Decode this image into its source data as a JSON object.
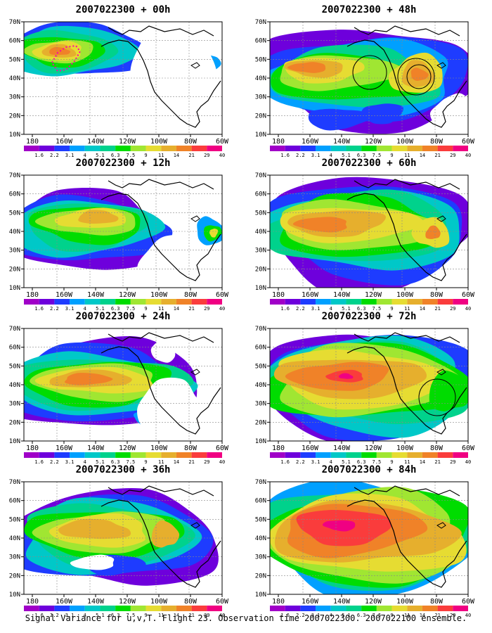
{
  "panels": [
    {
      "title": "2007022300 + 00h"
    },
    {
      "title": "2007022300 + 48h"
    },
    {
      "title": "2007022300 + 12h"
    },
    {
      "title": "2007022300 + 60h"
    },
    {
      "title": "2007022300 + 24h"
    },
    {
      "title": "2007022300 + 72h"
    },
    {
      "title": "2007022300 + 36h"
    },
    {
      "title": "2007022300 + 84h"
    }
  ],
  "lat_ticks": [
    "70N",
    "60N",
    "50N",
    "40N",
    "30N",
    "20N",
    "10N"
  ],
  "lon_ticks": [
    "180",
    "160W",
    "140W",
    "120W",
    "100W",
    "80W",
    "60W"
  ],
  "colorbar": {
    "labels": [
      "1.6",
      "2.2",
      "3.1",
      "4",
      "5.1",
      "6.3",
      "7.5",
      "9",
      "11",
      "14",
      "21",
      "29",
      "40"
    ],
    "colors": [
      "#a000c8",
      "#6e00dc",
      "#1e3cff",
      "#00a0ff",
      "#00c8c8",
      "#00d28c",
      "#00dc00",
      "#a0e632",
      "#e6dc32",
      "#e6af2d",
      "#f08228",
      "#fa3c3c",
      "#f00082"
    ]
  },
  "footer": "Signal Variance for u,v,T. Flight 23. Observation time 2007022300. 2007022100 ensemble."
}
